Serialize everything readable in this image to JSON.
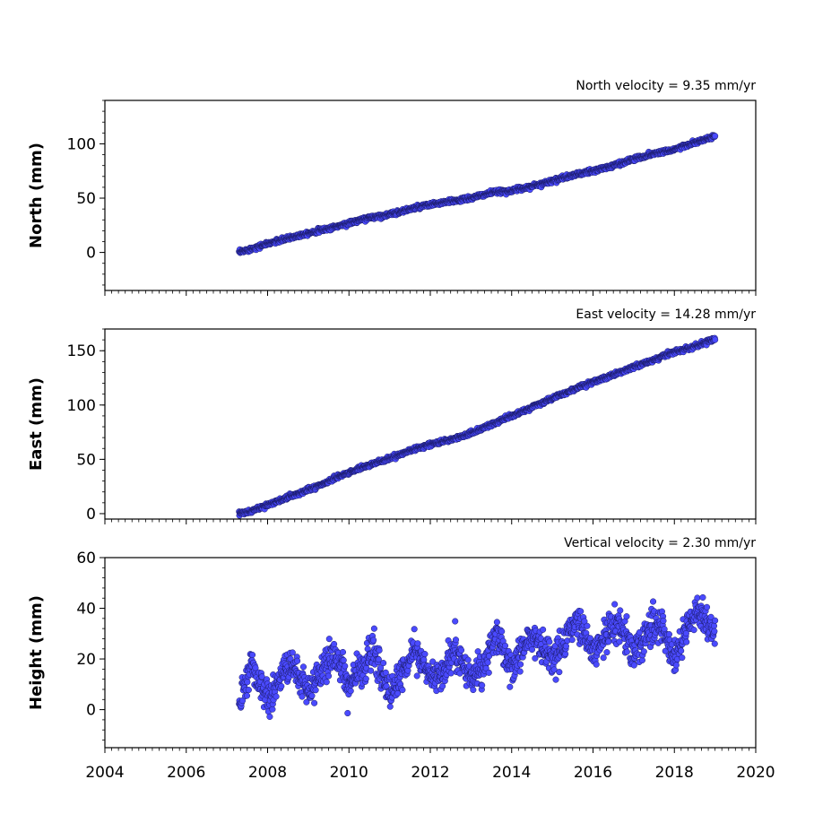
{
  "chart_data": [
    {
      "type": "scatter",
      "title": "North velocity = 9.35 mm/yr",
      "ylabel": "North (mm)",
      "xlim": [
        2004,
        2020
      ],
      "ylim": [
        -35,
        140
      ],
      "yticks": [
        "0",
        "50",
        "100"
      ],
      "xtick_labels_shown": false,
      "marker_color": "#4a4aff",
      "series": [
        {
          "x": [
            2007.3,
            2008.0,
            2008.5,
            2009.0,
            2009.5,
            2010.0,
            2010.5,
            2011.0,
            2011.5,
            2012.0,
            2012.5,
            2013.0,
            2013.5,
            2014.0,
            2014.5,
            2015.0,
            2015.5,
            2016.0,
            2016.5,
            2017.0,
            2017.5,
            2018.0,
            2018.5,
            2019.0
          ],
          "y": [
            0,
            8,
            13,
            18,
            22,
            27,
            32,
            35,
            40,
            44,
            47,
            50,
            55,
            57,
            61,
            66,
            71,
            75,
            80,
            86,
            91,
            95,
            101,
            107
          ]
        }
      ]
    },
    {
      "type": "scatter",
      "title": "East velocity = 14.28 mm/yr",
      "ylabel": "East (mm)",
      "xlim": [
        2004,
        2020
      ],
      "ylim": [
        -5,
        170
      ],
      "yticks": [
        "0",
        "50",
        "100",
        "150"
      ],
      "xtick_labels_shown": false,
      "marker_color": "#4a4aff",
      "series": [
        {
          "x": [
            2007.3,
            2007.6,
            2008.0,
            2008.5,
            2009.0,
            2009.5,
            2010.0,
            2010.5,
            2011.0,
            2011.5,
            2012.0,
            2012.5,
            2013.0,
            2013.5,
            2014.0,
            2014.5,
            2015.0,
            2015.5,
            2016.0,
            2016.5,
            2017.0,
            2017.5,
            2018.0,
            2018.5,
            2019.0
          ],
          "y": [
            0,
            2,
            8,
            15,
            22,
            30,
            38,
            45,
            51,
            58,
            64,
            68,
            74,
            82,
            90,
            98,
            106,
            114,
            121,
            128,
            135,
            142,
            149,
            154,
            161
          ]
        }
      ]
    },
    {
      "type": "scatter",
      "title": "Vertical velocity = 2.30 mm/yr",
      "ylabel": "Height (mm)",
      "xlim": [
        2004,
        2020
      ],
      "ylim": [
        -15,
        60
      ],
      "yticks": [
        "0",
        "20",
        "40",
        "60"
      ],
      "xticks": [
        "2004",
        "2006",
        "2008",
        "2010",
        "2012",
        "2014",
        "2016",
        "2018",
        "2020"
      ],
      "xtick_labels_shown": true,
      "marker_color": "#4a4aff",
      "series": [
        {
          "x": [
            2007.3,
            2007.6,
            2008.0,
            2008.3,
            2008.6,
            2009.0,
            2009.3,
            2009.6,
            2010.0,
            2010.3,
            2010.6,
            2011.0,
            2011.3,
            2011.6,
            2012.0,
            2012.3,
            2012.6,
            2013.0,
            2013.3,
            2013.6,
            2014.0,
            2014.3,
            2014.6,
            2015.0,
            2015.3,
            2015.6,
            2016.0,
            2016.3,
            2016.6,
            2017.0,
            2017.3,
            2017.6,
            2018.0,
            2018.3,
            2018.6,
            2019.0
          ],
          "y": [
            2,
            18,
            4,
            12,
            18,
            6,
            14,
            22,
            10,
            16,
            24,
            6,
            14,
            24,
            14,
            14,
            24,
            12,
            16,
            30,
            16,
            24,
            30,
            20,
            26,
            36,
            22,
            30,
            34,
            22,
            30,
            36,
            20,
            32,
            40,
            30
          ]
        }
      ]
    }
  ]
}
